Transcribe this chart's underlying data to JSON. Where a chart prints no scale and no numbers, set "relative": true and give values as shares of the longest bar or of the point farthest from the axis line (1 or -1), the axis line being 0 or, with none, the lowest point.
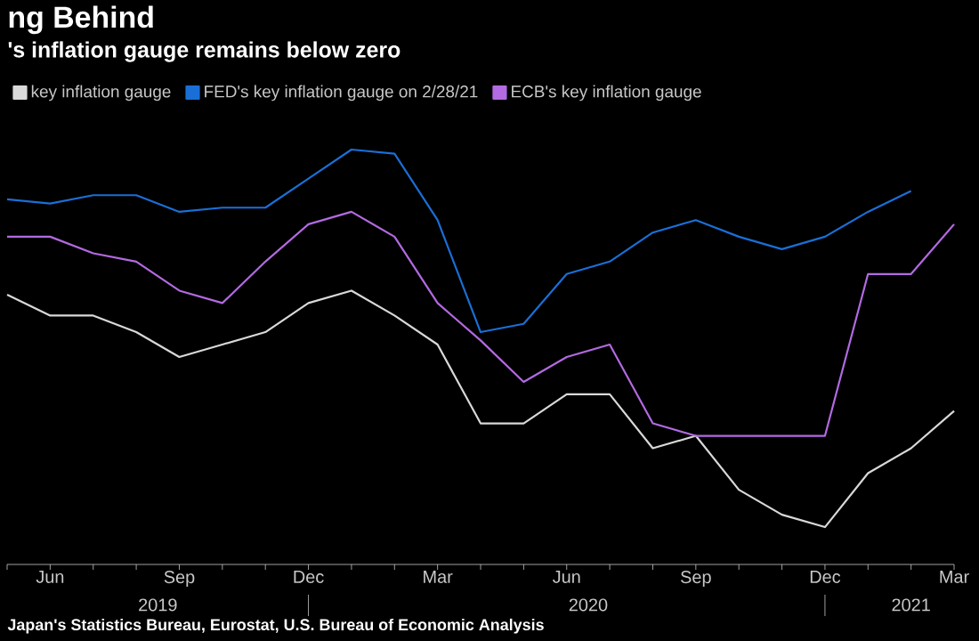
{
  "chart_data": {
    "type": "line",
    "title": "ng Behind",
    "subtitle": "'s inflation gauge remains below zero",
    "relative": true,
    "legend": "top left",
    "marker": "none",
    "line_style": "solid",
    "x": [
      "2019-05",
      "2019-06",
      "2019-07",
      "2019-08",
      "2019-09",
      "2019-10",
      "2019-11",
      "2019-12",
      "2020-01",
      "2020-02",
      "2020-03",
      "2020-04",
      "2020-05",
      "2020-06",
      "2020-07",
      "2020-08",
      "2020-09",
      "2020-10",
      "2020-11",
      "2020-12",
      "2021-01",
      "2021-02",
      "2021-03"
    ],
    "xlim": [
      "2019-05",
      "2021-03"
    ],
    "xticks": [
      {
        "value": "2019-05",
        "label": null
      },
      {
        "value": "2019-06",
        "label": "Jun"
      },
      {
        "value": "2019-07",
        "label": null
      },
      {
        "value": "2019-08",
        "label": null
      },
      {
        "value": "2019-09",
        "label": "Sep"
      },
      {
        "value": "2019-10",
        "label": null
      },
      {
        "value": "2019-11",
        "label": null
      },
      {
        "value": "2019-12",
        "label": "Dec"
      },
      {
        "value": "2020-01",
        "label": null
      },
      {
        "value": "2020-02",
        "label": null
      },
      {
        "value": "2020-03",
        "label": "Mar"
      },
      {
        "value": "2020-04",
        "label": null
      },
      {
        "value": "2020-05",
        "label": null
      },
      {
        "value": "2020-06",
        "label": "Jun"
      },
      {
        "value": "2020-07",
        "label": null
      },
      {
        "value": "2020-08",
        "label": null
      },
      {
        "value": "2020-09",
        "label": "Sep"
      },
      {
        "value": "2020-10",
        "label": null
      },
      {
        "value": "2020-11",
        "label": null
      },
      {
        "value": "2020-12",
        "label": "Dec"
      },
      {
        "value": "2021-01",
        "label": null
      },
      {
        "value": "2021-02",
        "label": null
      },
      {
        "value": "2021-03",
        "label": "Mar"
      }
    ],
    "series": [
      {
        "name": "key inflation gauge",
        "color": "#d9d9d9",
        "values": [
          0.65,
          0.6,
          0.6,
          0.56,
          0.5,
          0.53,
          0.56,
          0.63,
          0.66,
          0.6,
          0.53,
          0.34,
          0.34,
          0.41,
          0.41,
          0.28,
          0.31,
          0.18,
          0.12,
          0.09,
          0.22,
          0.28,
          0.37
        ]
      },
      {
        "name": "FED's key inflation gauge on 2/28/21",
        "color": "#1a6fd6",
        "values": [
          0.88,
          0.87,
          0.89,
          0.89,
          0.85,
          0.86,
          0.86,
          0.93,
          1,
          0.99,
          0.83,
          0.56,
          0.58,
          0.7,
          0.73,
          0.8,
          0.83,
          0.79,
          0.76,
          0.79,
          0.85,
          0.9,
          null
        ]
      },
      {
        "name": "ECB's key inflation gauge",
        "color": "#b36ae2",
        "values": [
          0.79,
          0.79,
          0.75,
          0.73,
          0.66,
          0.63,
          0.73,
          0.82,
          0.85,
          0.79,
          0.63,
          0.54,
          0.44,
          0.5,
          0.53,
          0.34,
          0.31,
          0.31,
          0.31,
          0.31,
          0.7,
          0.7,
          0.82
        ]
      }
    ],
    "annotations": [
      "Japan's Statistics Bureau, Eurostat, U.S. Bureau of Economic Analysis",
      "2019",
      "2020",
      "2021"
    ]
  }
}
